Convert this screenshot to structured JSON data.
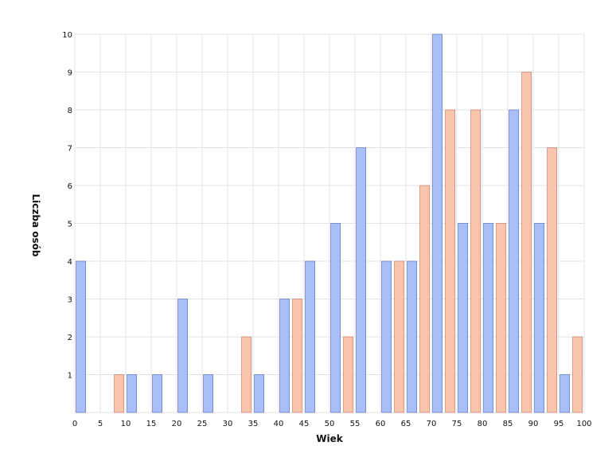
{
  "chart_data": {
    "type": "bar",
    "title": "",
    "xlabel": "Wiek",
    "ylabel": "Liczba osób",
    "xlim": [
      0,
      100
    ],
    "ylim": [
      0,
      10
    ],
    "x_ticks": [
      "0",
      "5",
      "10",
      "15",
      "20",
      "25",
      "30",
      "35",
      "40",
      "45",
      "50",
      "55",
      "60",
      "65",
      "70",
      "75",
      "80",
      "85",
      "90",
      "95",
      "100"
    ],
    "y_ticks": [
      "1",
      "2",
      "3",
      "4",
      "5",
      "6",
      "7",
      "8",
      "9",
      "10"
    ],
    "grid": true,
    "legend": "none",
    "bin_width": 5,
    "categories": [
      "0-5",
      "5-10",
      "10-15",
      "15-20",
      "20-25",
      "25-30",
      "30-35",
      "35-40",
      "40-45",
      "45-50",
      "50-55",
      "55-60",
      "60-65",
      "65-70",
      "70-75",
      "75-80",
      "80-85",
      "85-90",
      "90-95",
      "95-100"
    ],
    "series": [
      {
        "color": "#a9bff7",
        "stroke": "#6d7fc2",
        "values": [
          4,
          0,
          1,
          1,
          3,
          1,
          0,
          1,
          3,
          4,
          5,
          7,
          4,
          4,
          10,
          5,
          5,
          8,
          5,
          1
        ]
      },
      {
        "color": "#fbc4ad",
        "stroke": "#c98a78",
        "values": [
          0,
          1,
          0,
          0,
          0,
          0,
          2,
          0,
          3,
          0,
          2,
          0,
          4,
          6,
          8,
          8,
          5,
          9,
          7,
          2
        ]
      }
    ]
  }
}
